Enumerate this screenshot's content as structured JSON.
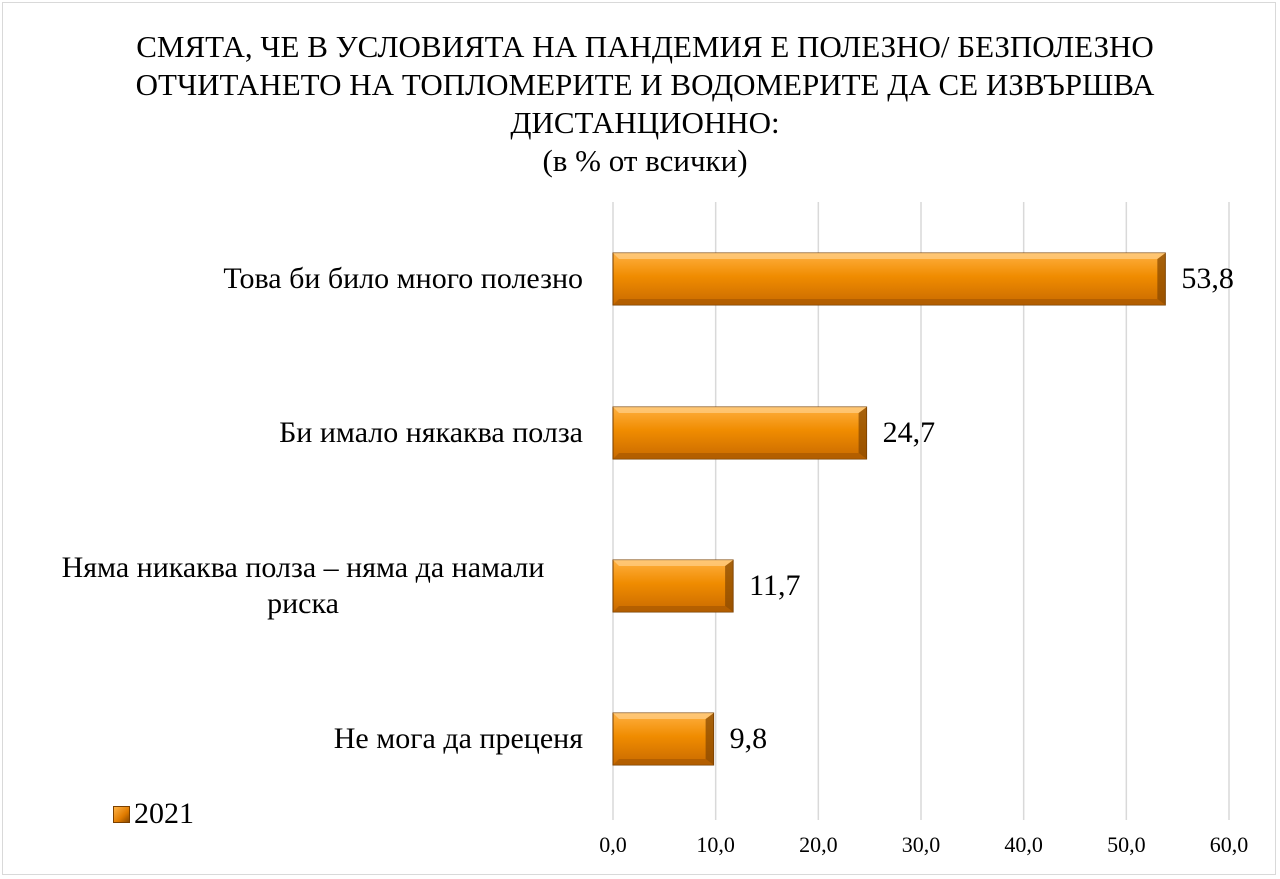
{
  "chart_data": {
    "type": "bar",
    "orientation": "horizontal",
    "title": "СМЯТА, ЧЕ В УСЛОВИЯТА НА ПАНДЕМИЯ Е ПОЛЕЗНО/ БЕЗПОЛЕЗНО ОТЧИТАНЕТО НА ТОПЛОМЕРИТЕ И ВОДОМЕРИТЕ ДА СЕ ИЗВЪРШВА ДИСТАНЦИОННО:",
    "subtitle": "(в % от всички)",
    "categories": [
      "Това би било много полезно",
      "Би имало някаква полза",
      "Няма никаква полза – няма да намали риска",
      "Не мога да преценя"
    ],
    "series": [
      {
        "name": "2021",
        "values": [
          53.8,
          24.7,
          11.7,
          9.8
        ],
        "color": "#f08c00"
      }
    ],
    "value_labels": [
      "53,8",
      "24,7",
      "11,7",
      "9,8"
    ],
    "xlim": [
      0,
      60
    ],
    "xticks": [
      "0,0",
      "10,0",
      "20,0",
      "30,0",
      "40,0",
      "50,0",
      "60,0"
    ],
    "grid": true,
    "legend_position": "bottom-left"
  }
}
